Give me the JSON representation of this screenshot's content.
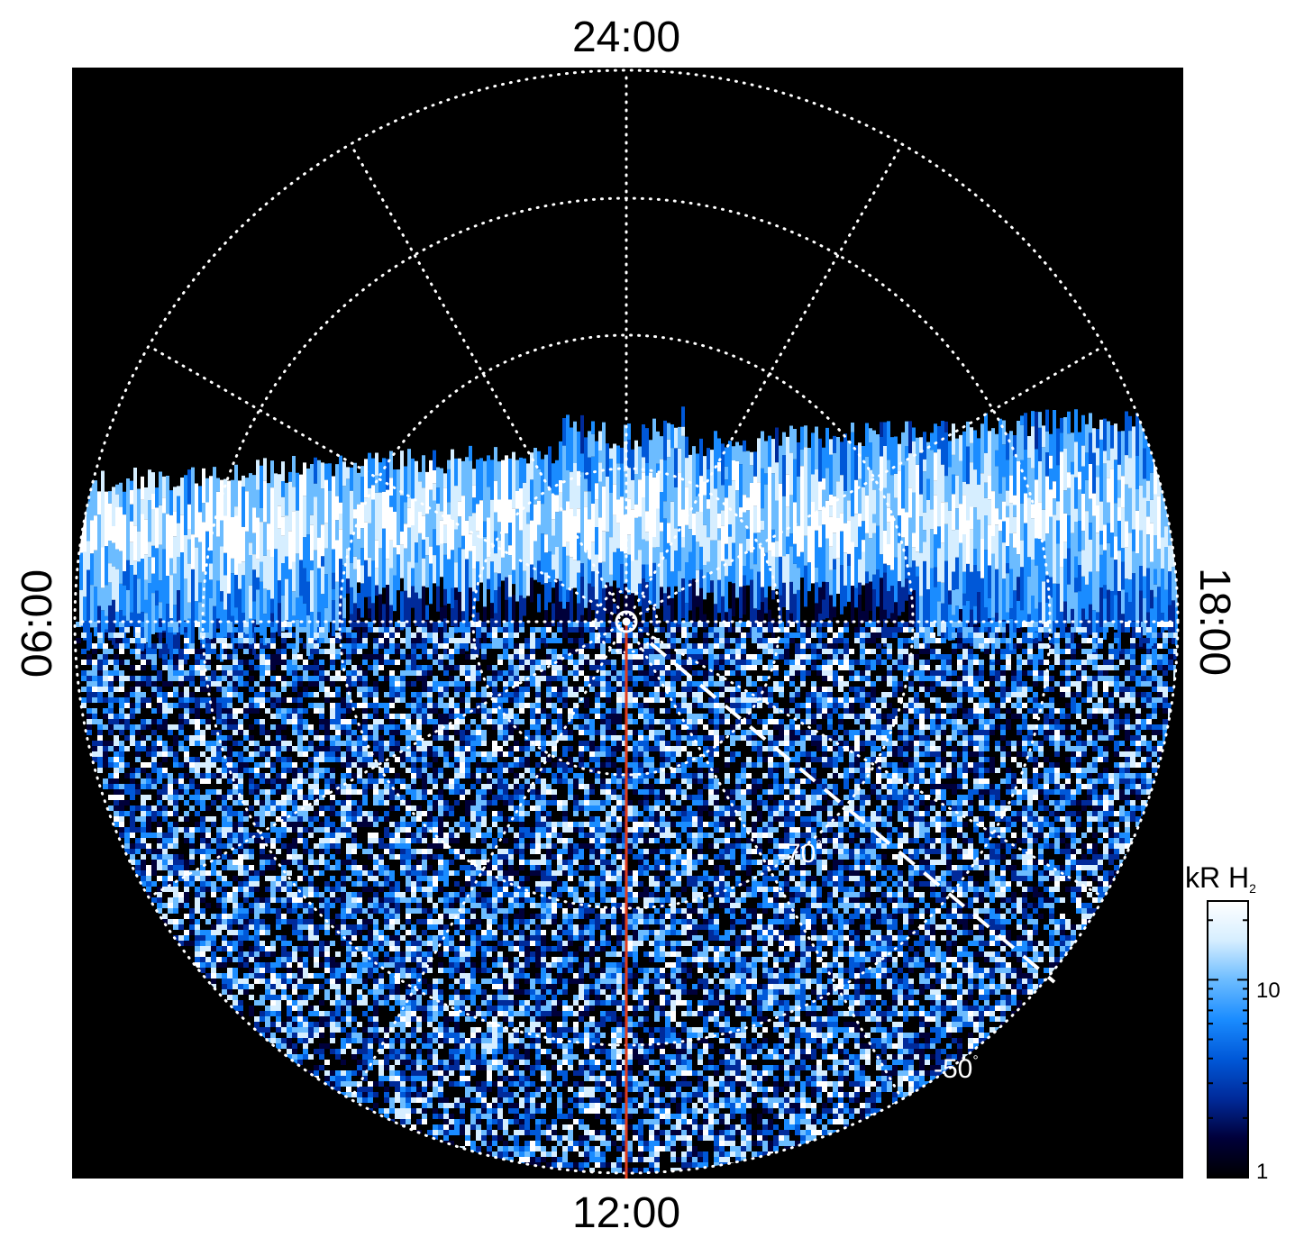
{
  "chart_data": {
    "type": "heatmap",
    "projection": "polar",
    "local_time_labels": {
      "top": "24:00",
      "bottom": "12:00",
      "left": "06:00",
      "right": "18:00"
    },
    "latitude_labels": [
      {
        "text": "-70",
        "unit": "°"
      },
      {
        "text": "-50",
        "unit": "°"
      }
    ],
    "colorbar": {
      "title": "kR H",
      "title_subscript": "2",
      "scale": "log",
      "range": [
        1,
        25
      ],
      "ticks": [
        {
          "value": 1,
          "label": "1"
        },
        {
          "value": 10,
          "label": "10"
        }
      ],
      "colors": [
        "#000000",
        "#00003a",
        "#002a9a",
        "#0058d8",
        "#1a8cff",
        "#6cbcff",
        "#d6eeff",
        "#ffffff"
      ]
    },
    "grid": "dotted",
    "grid_color": "#ffffff",
    "background": "#000000",
    "meridian_line_color": "#e03c1c",
    "dashed_line_color": "#ffffff",
    "pole_marker": "bullseye"
  }
}
